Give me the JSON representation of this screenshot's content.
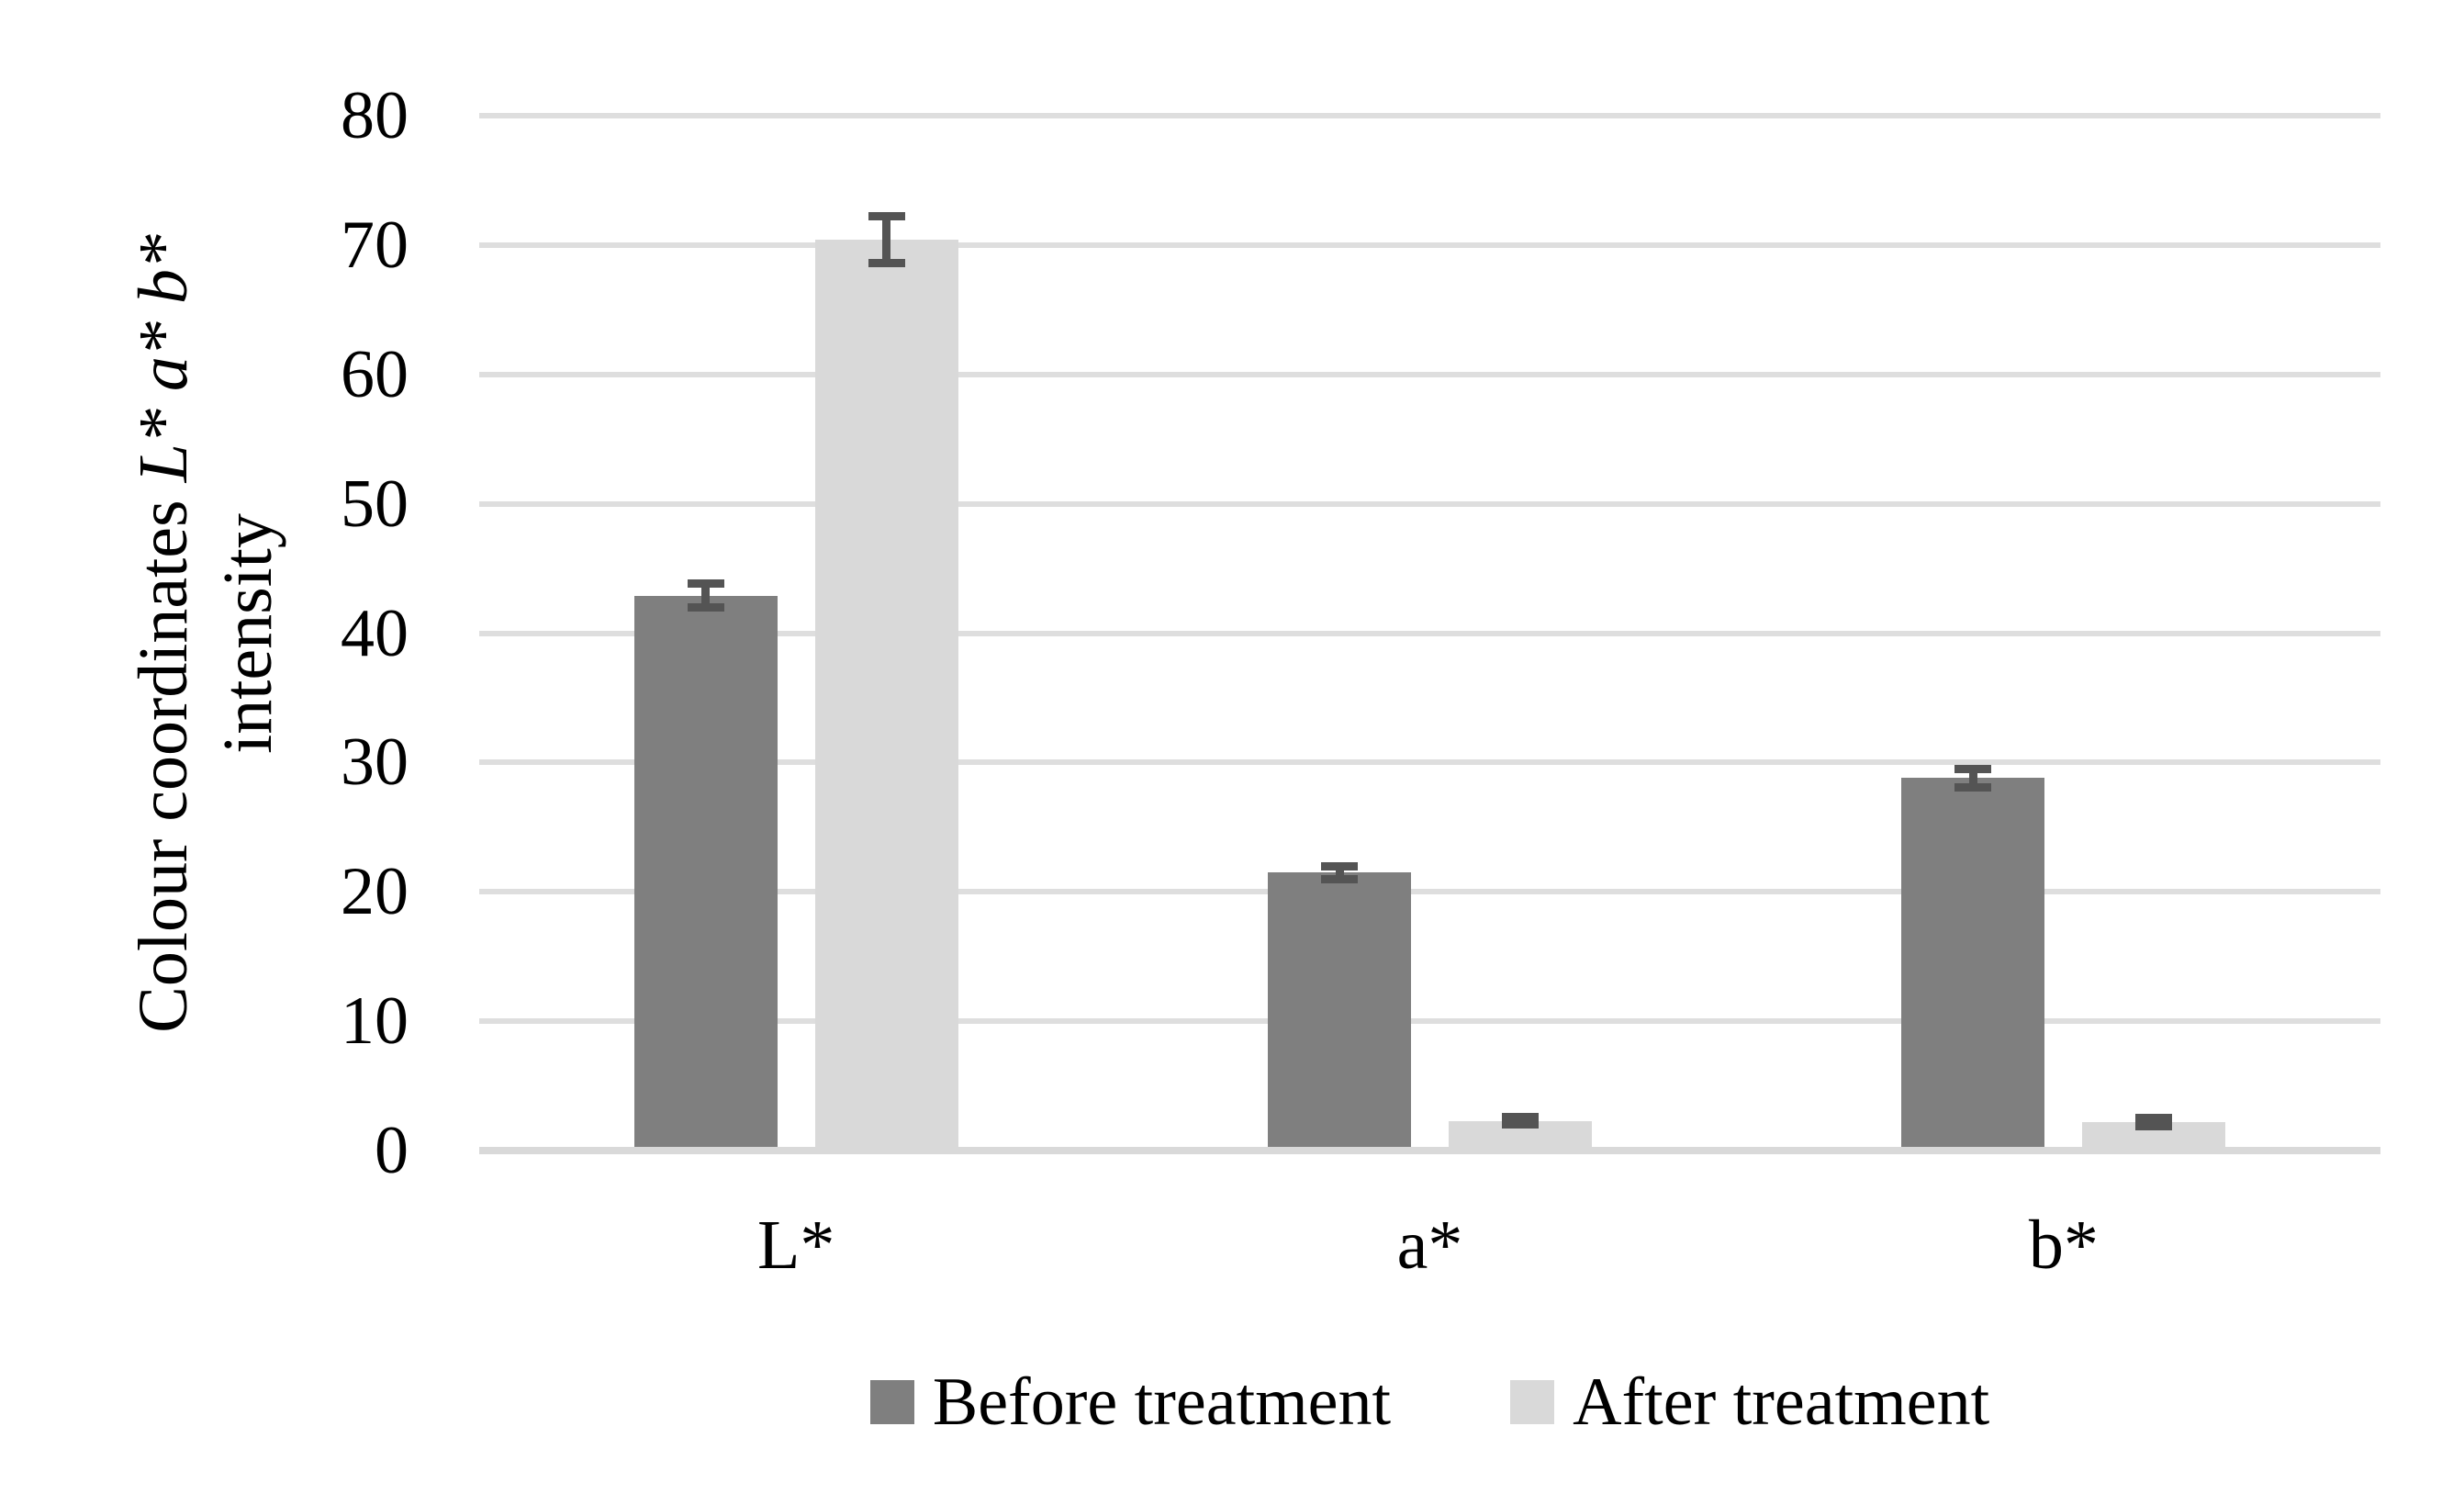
{
  "chart_data": {
    "type": "bar",
    "title": "",
    "categories": [
      "L*",
      "a*",
      "b*"
    ],
    "series": [
      {
        "name": "Before treatment",
        "color": "#7F7F7F",
        "values": [
          42.9,
          21.5,
          28.8
        ],
        "errors": [
          0.9,
          0.5,
          0.7
        ]
      },
      {
        "name": "After treatment",
        "color": "#D9D9D9",
        "values": [
          70.4,
          2.3,
          2.2
        ],
        "errors": [
          1.8,
          0.3,
          0.3
        ]
      }
    ],
    "ylabel_line1_regular": "Colour coordinates ",
    "ylabel_line1_italic": "L* a* b*",
    "ylabel_line2": "intensity",
    "xlabel": "",
    "ylim": [
      0,
      80
    ],
    "yticks": [
      0,
      10,
      20,
      30,
      40,
      50,
      60,
      70,
      80
    ],
    "grid": "horizontal-only",
    "legend_position": "bottom-center",
    "error_bars": "plus-minus, both series",
    "colors": {
      "gridline": "#DEDEDE",
      "axis_line": "#D9D9D9",
      "error_bar": "#545454",
      "text": "#000000",
      "background": "#FFFFFF"
    }
  }
}
